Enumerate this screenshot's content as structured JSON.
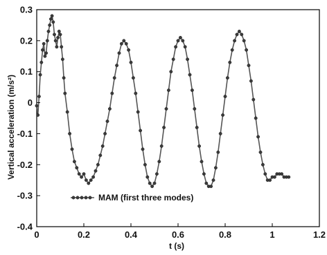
{
  "chart_data": {
    "type": "line",
    "title": "",
    "xlabel": "t (s)",
    "ylabel": "Vertical acceleration (m/s²)",
    "xlim": [
      0,
      1.2
    ],
    "ylim": [
      -0.4,
      0.3
    ],
    "x_ticks": [
      0,
      0.2,
      0.4,
      0.6,
      0.8,
      1.0,
      1.2
    ],
    "x_tick_labels": [
      "0",
      "0.2",
      "0.4",
      "0.6",
      "0.8",
      "1",
      "1.2"
    ],
    "y_ticks": [
      -0.4,
      -0.3,
      -0.2,
      -0.1,
      0,
      0.1,
      0.2,
      0.3
    ],
    "y_tick_labels": [
      "-0.4",
      "-0.3",
      "-0.2",
      "-0.1",
      "0",
      "0.1",
      "0.2",
      "0.3"
    ],
    "grid": false,
    "legend_position": "lower-left",
    "colors": {
      "line": "#555555",
      "marker": "#3a3a3a",
      "axis": "#000000"
    },
    "series": [
      {
        "name": "MAM (first three modes)",
        "points": [
          [
            0.0,
            -0.01
          ],
          [
            0.005,
            -0.04
          ],
          [
            0.01,
            0.02
          ],
          [
            0.015,
            0.09
          ],
          [
            0.02,
            0.13
          ],
          [
            0.025,
            0.17
          ],
          [
            0.03,
            0.19
          ],
          [
            0.035,
            0.15
          ],
          [
            0.04,
            0.16
          ],
          [
            0.045,
            0.2
          ],
          [
            0.05,
            0.23
          ],
          [
            0.055,
            0.25
          ],
          [
            0.06,
            0.27
          ],
          [
            0.065,
            0.28
          ],
          [
            0.07,
            0.26
          ],
          [
            0.075,
            0.22
          ],
          [
            0.08,
            0.2
          ],
          [
            0.085,
            0.18
          ],
          [
            0.09,
            0.21
          ],
          [
            0.095,
            0.23
          ],
          [
            0.1,
            0.22
          ],
          [
            0.105,
            0.18
          ],
          [
            0.11,
            0.14
          ],
          [
            0.115,
            0.08
          ],
          [
            0.12,
            0.03
          ],
          [
            0.13,
            -0.03
          ],
          [
            0.14,
            -0.1
          ],
          [
            0.15,
            -0.15
          ],
          [
            0.16,
            -0.19
          ],
          [
            0.17,
            -0.21
          ],
          [
            0.18,
            -0.23
          ],
          [
            0.19,
            -0.24
          ],
          [
            0.2,
            -0.23
          ],
          [
            0.21,
            -0.25
          ],
          [
            0.22,
            -0.26
          ],
          [
            0.23,
            -0.25
          ],
          [
            0.24,
            -0.24
          ],
          [
            0.25,
            -0.22
          ],
          [
            0.26,
            -0.2
          ],
          [
            0.27,
            -0.17
          ],
          [
            0.28,
            -0.14
          ],
          [
            0.29,
            -0.1
          ],
          [
            0.3,
            -0.06
          ],
          [
            0.31,
            -0.02
          ],
          [
            0.32,
            0.03
          ],
          [
            0.33,
            0.08
          ],
          [
            0.34,
            0.12
          ],
          [
            0.35,
            0.16
          ],
          [
            0.36,
            0.19
          ],
          [
            0.37,
            0.2
          ],
          [
            0.38,
            0.19
          ],
          [
            0.39,
            0.17
          ],
          [
            0.4,
            0.13
          ],
          [
            0.41,
            0.08
          ],
          [
            0.42,
            0.03
          ],
          [
            0.43,
            -0.03
          ],
          [
            0.44,
            -0.09
          ],
          [
            0.45,
            -0.15
          ],
          [
            0.46,
            -0.2
          ],
          [
            0.47,
            -0.24
          ],
          [
            0.48,
            -0.26
          ],
          [
            0.49,
            -0.27
          ],
          [
            0.5,
            -0.26
          ],
          [
            0.51,
            -0.23
          ],
          [
            0.52,
            -0.19
          ],
          [
            0.53,
            -0.14
          ],
          [
            0.54,
            -0.08
          ],
          [
            0.55,
            -0.02
          ],
          [
            0.56,
            0.04
          ],
          [
            0.57,
            0.1
          ],
          [
            0.58,
            0.14
          ],
          [
            0.59,
            0.18
          ],
          [
            0.6,
            0.2
          ],
          [
            0.61,
            0.21
          ],
          [
            0.62,
            0.2
          ],
          [
            0.63,
            0.18
          ],
          [
            0.64,
            0.14
          ],
          [
            0.65,
            0.09
          ],
          [
            0.66,
            0.04
          ],
          [
            0.67,
            -0.02
          ],
          [
            0.68,
            -0.08
          ],
          [
            0.69,
            -0.14
          ],
          [
            0.7,
            -0.19
          ],
          [
            0.71,
            -0.23
          ],
          [
            0.72,
            -0.26
          ],
          [
            0.73,
            -0.27
          ],
          [
            0.74,
            -0.27
          ],
          [
            0.75,
            -0.25
          ],
          [
            0.76,
            -0.21
          ],
          [
            0.77,
            -0.16
          ],
          [
            0.78,
            -0.1
          ],
          [
            0.79,
            -0.04
          ],
          [
            0.8,
            0.02
          ],
          [
            0.81,
            0.08
          ],
          [
            0.82,
            0.13
          ],
          [
            0.83,
            0.17
          ],
          [
            0.84,
            0.2
          ],
          [
            0.85,
            0.22
          ],
          [
            0.86,
            0.23
          ],
          [
            0.87,
            0.22
          ],
          [
            0.88,
            0.2
          ],
          [
            0.89,
            0.17
          ],
          [
            0.9,
            0.12
          ],
          [
            0.91,
            0.07
          ],
          [
            0.92,
            0.01
          ],
          [
            0.93,
            -0.05
          ],
          [
            0.94,
            -0.11
          ],
          [
            0.95,
            -0.16
          ],
          [
            0.96,
            -0.2
          ],
          [
            0.97,
            -0.23
          ],
          [
            0.98,
            -0.25
          ],
          [
            0.99,
            -0.25
          ],
          [
            1.0,
            -0.24
          ],
          [
            1.01,
            -0.24
          ],
          [
            1.02,
            -0.23
          ],
          [
            1.03,
            -0.23
          ],
          [
            1.04,
            -0.23
          ],
          [
            1.05,
            -0.24
          ],
          [
            1.06,
            -0.24
          ],
          [
            1.07,
            -0.24
          ]
        ]
      }
    ]
  }
}
